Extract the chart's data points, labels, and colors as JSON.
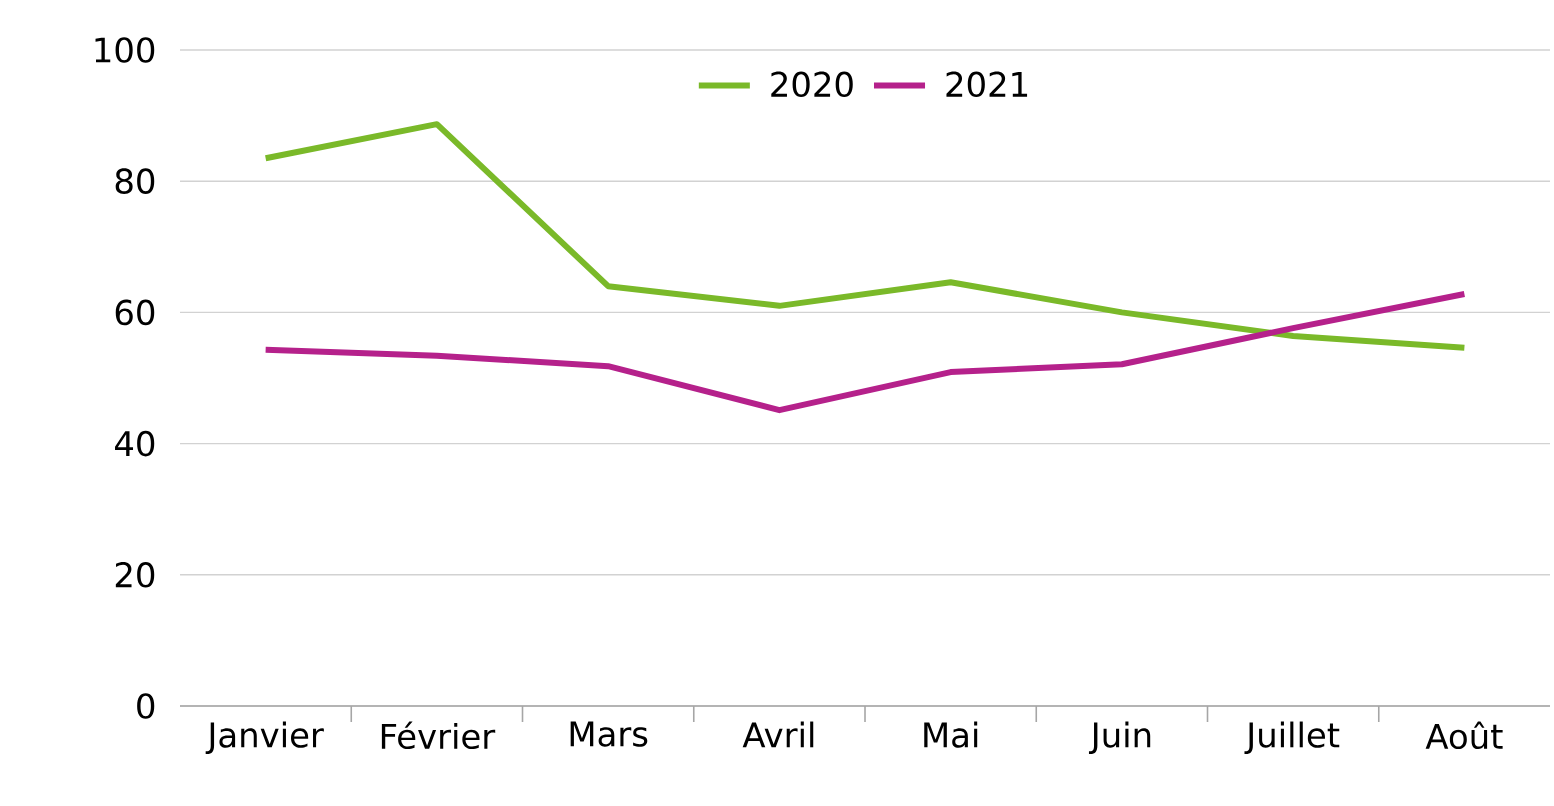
{
  "chart_data": {
    "type": "line",
    "categories": [
      "Janvier",
      "Février",
      "Mars",
      "Avril",
      "Mai",
      "Juin",
      "Juillet",
      "Août"
    ],
    "series": [
      {
        "name": "2020",
        "color": "#7ab929",
        "values": [
          83.5,
          88.7,
          64,
          61,
          64.6,
          60,
          56.4,
          54.6
        ]
      },
      {
        "name": "2021",
        "color": "#b5218b",
        "values": [
          54.3,
          53.4,
          51.8,
          45.1,
          50.9,
          52.1,
          57.6,
          62.8
        ]
      }
    ],
    "ylim": [
      0,
      100
    ],
    "yticks": [
      0,
      20,
      40,
      60,
      80,
      100
    ],
    "grid": "y",
    "legend": "top",
    "marker": "none",
    "line_style": "solid"
  }
}
